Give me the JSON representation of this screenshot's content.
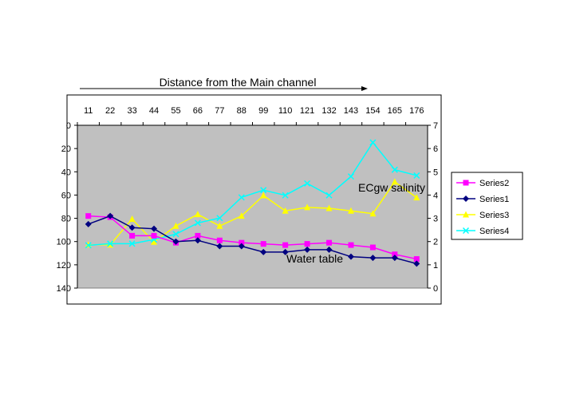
{
  "chart_data": {
    "type": "line",
    "title": "Distance from the Main channel",
    "categories": [
      11,
      22,
      33,
      44,
      55,
      66,
      77,
      88,
      99,
      110,
      121,
      132,
      143,
      154,
      165,
      176
    ],
    "x_axis_position": "top",
    "left_axis": {
      "min": 0,
      "max": 140,
      "step": 20,
      "reversed": true,
      "ticks": [
        0,
        20,
        40,
        60,
        80,
        100,
        120,
        140
      ]
    },
    "right_axis": {
      "min": 0,
      "max": 7,
      "step": 1,
      "ticks": [
        0,
        1,
        2,
        3,
        4,
        5,
        6,
        7
      ]
    },
    "plot_background": "#c0c0c0",
    "grid": false,
    "legend_position": "right",
    "annotations": [
      {
        "text": "ECgw salinity"
      },
      {
        "text": "Water table"
      }
    ],
    "series": [
      {
        "name": "Series2",
        "axis": "left",
        "color": "#ff00ff",
        "marker": "square",
        "values": [
          78,
          79,
          95,
          95,
          101,
          95,
          99,
          101,
          102,
          103,
          102,
          101,
          103,
          105,
          111,
          115
        ]
      },
      {
        "name": "Series1",
        "axis": "left",
        "color": "#000080",
        "marker": "diamond",
        "values": [
          85,
          78,
          88,
          89,
          100,
          99,
          104,
          104,
          109,
          109,
          107,
          107,
          113,
          114,
          114,
          119
        ]
      },
      {
        "name": "Series3",
        "axis": "right",
        "color": "#ffff00",
        "marker": "triangle",
        "values": [
          1.86,
          1.86,
          2.97,
          1.98,
          2.67,
          3.17,
          2.67,
          3.1,
          3.98,
          3.32,
          3.47,
          3.43,
          3.32,
          3.2,
          4.57,
          3.89
        ]
      },
      {
        "name": "Series4",
        "axis": "right",
        "color": "#00ffff",
        "marker": "x",
        "values": [
          1.84,
          1.91,
          1.91,
          2.09,
          2.32,
          2.8,
          3.01,
          3.9,
          4.21,
          3.99,
          4.5,
          3.99,
          4.8,
          6.26,
          5.09,
          4.84
        ]
      }
    ]
  }
}
